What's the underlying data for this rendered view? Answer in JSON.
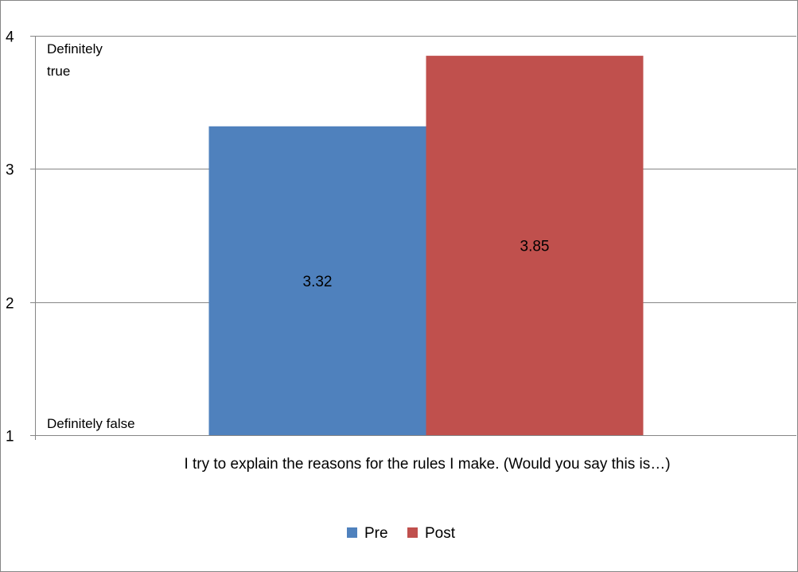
{
  "chart_data": {
    "type": "bar",
    "categories": [
      "I try to explain the reasons for the rules I make. (Would you say this is…)"
    ],
    "series": [
      {
        "name": "Pre",
        "values": [
          3.32
        ],
        "color": "#4F81BD"
      },
      {
        "name": "Post",
        "values": [
          3.85
        ],
        "color": "#C0504D"
      }
    ],
    "data_labels": [
      "3.32",
      "3.85"
    ],
    "ylim": [
      1,
      4
    ],
    "yticks": [
      "1",
      "2",
      "3",
      "4"
    ],
    "annotations": {
      "top": [
        "Definitely",
        "true"
      ],
      "bottom": "Definitely false"
    },
    "grid": true,
    "legend": "bottom"
  }
}
